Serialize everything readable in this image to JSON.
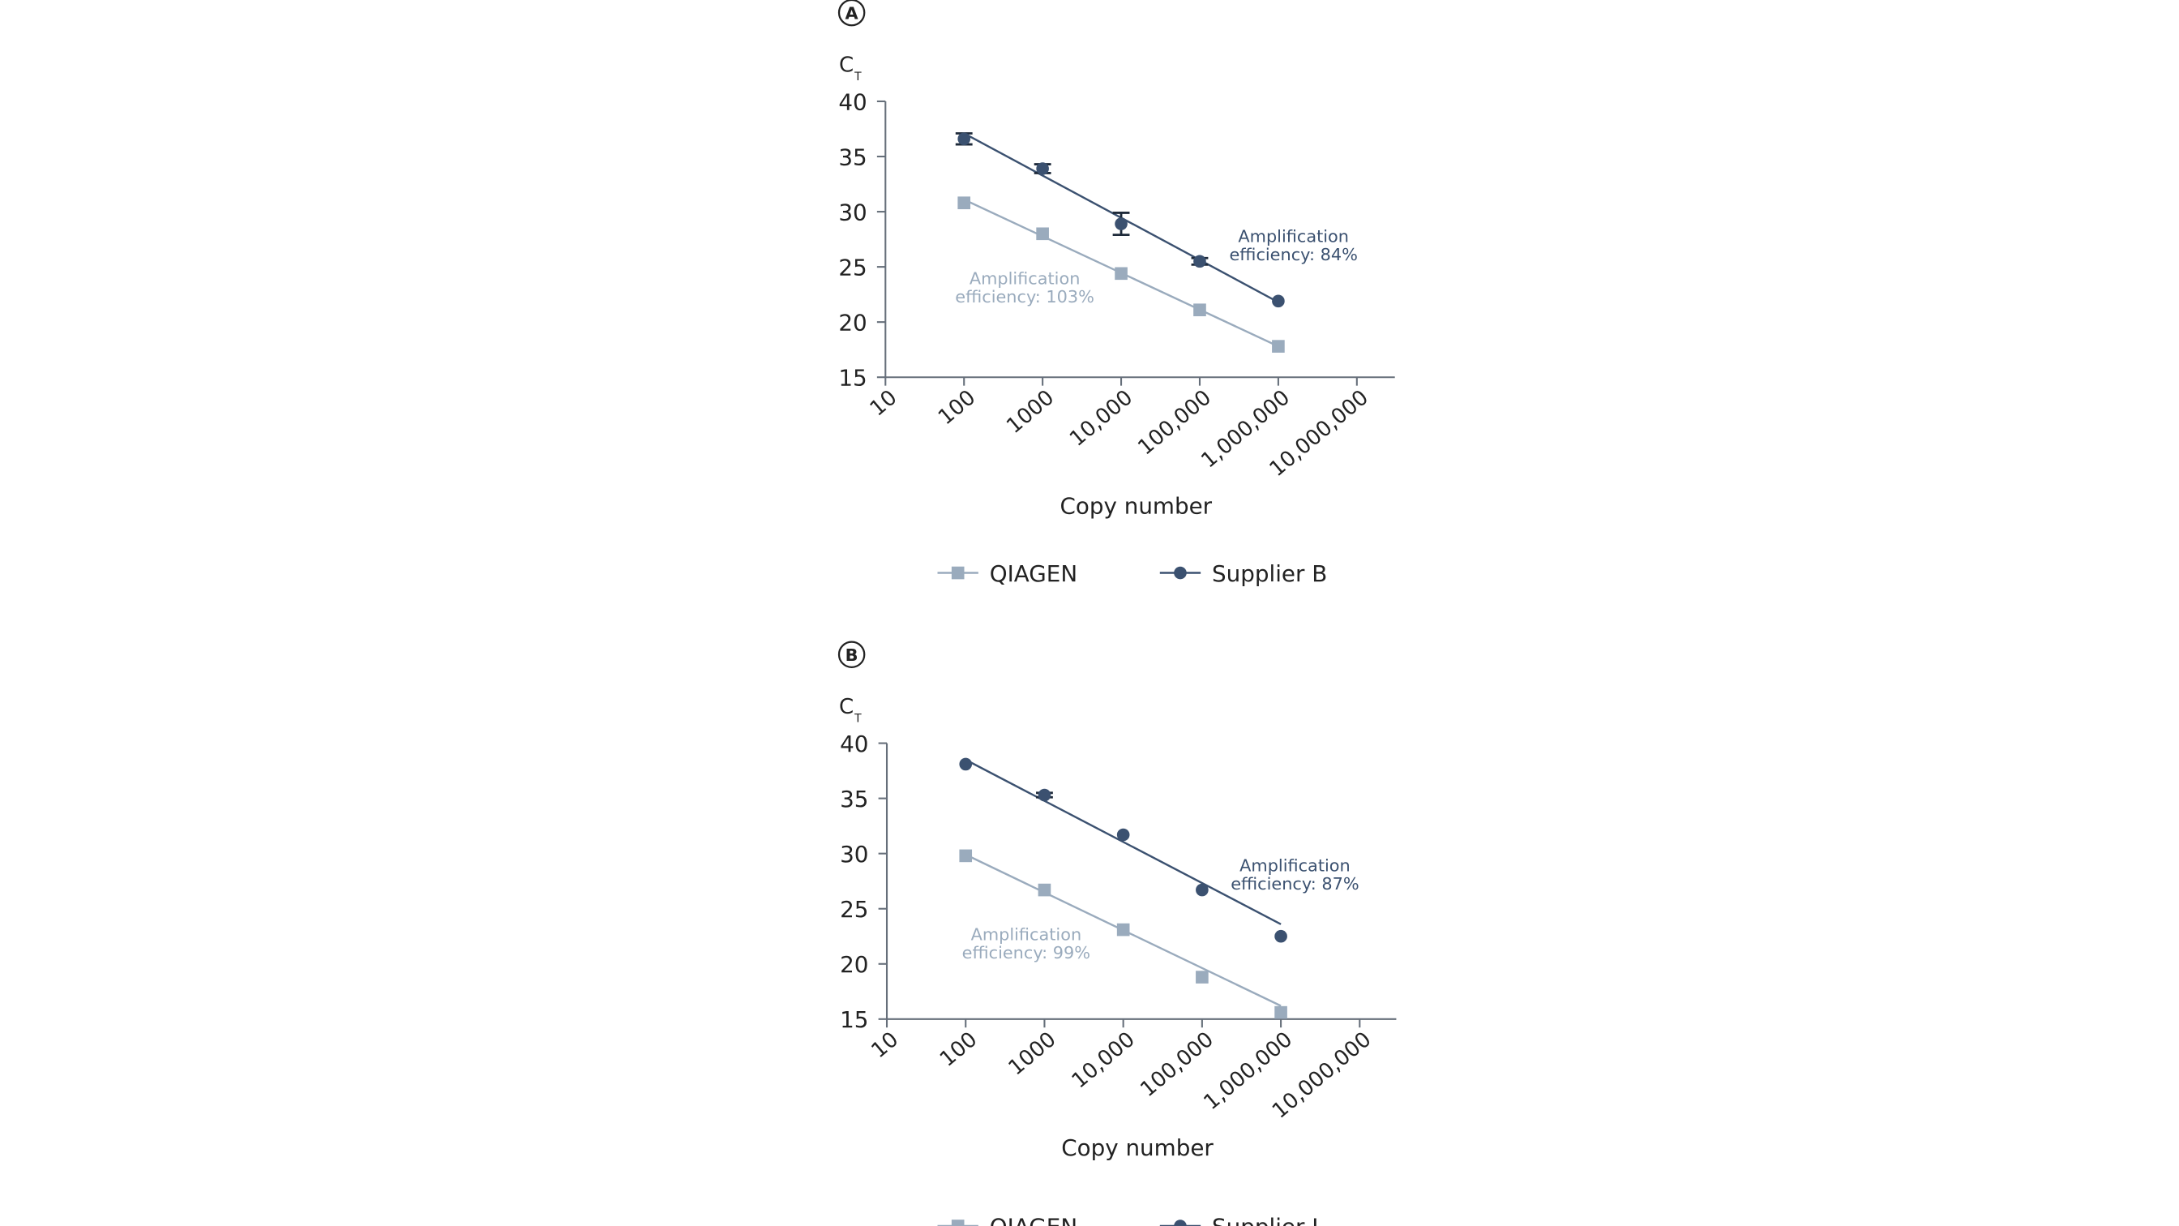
{
  "chart_data": [
    {
      "panel_label": "A",
      "type": "scatter",
      "ylabel": "C",
      "ylabel_sub": "T",
      "xlabel": "Copy number",
      "x_scale": "log10",
      "xlim": [
        10,
        10000000
      ],
      "ylim": [
        15,
        40
      ],
      "y_ticks": [
        40,
        35,
        30,
        25,
        20,
        15
      ],
      "x_ticks": [
        10,
        100,
        1000,
        10000,
        100000,
        1000000,
        10000000
      ],
      "x_tick_labels": [
        "10",
        "100",
        "1000",
        "10,000",
        "100,000",
        "1,000,000",
        "10,000,000"
      ],
      "series": [
        {
          "name": "QIAGEN",
          "marker": "square",
          "color": "#9aabbd",
          "x": [
            100,
            1000,
            10000,
            100000,
            1000000
          ],
          "y": [
            30.8,
            28.0,
            24.4,
            21.1,
            17.8
          ],
          "fit": [
            31.1,
            17.8
          ],
          "annotation": [
            "Amplification",
            "efficiency: 103%"
          ]
        },
        {
          "name": "Supplier B",
          "marker": "circle",
          "color": "#3b5170",
          "x": [
            100,
            1000,
            10000,
            100000,
            1000000
          ],
          "y": [
            36.6,
            33.9,
            28.9,
            25.5,
            21.9
          ],
          "err": [
            0.5,
            0.4,
            1.0,
            0.3,
            0
          ],
          "fit": [
            37.1,
            21.8
          ],
          "annotation": [
            "Amplification",
            "efficiency: 84%"
          ]
        }
      ]
    },
    {
      "panel_label": "B",
      "type": "scatter",
      "ylabel": "C",
      "ylabel_sub": "T",
      "xlabel": "Copy number",
      "x_scale": "log10",
      "xlim": [
        10,
        10000000
      ],
      "ylim": [
        15,
        40
      ],
      "y_ticks": [
        40,
        35,
        30,
        25,
        20,
        15
      ],
      "x_ticks": [
        10,
        100,
        1000,
        10000,
        100000,
        1000000,
        10000000
      ],
      "x_tick_labels": [
        "10",
        "100",
        "1000",
        "10,000",
        "100,000",
        "1,000,000",
        "10,000,000"
      ],
      "series": [
        {
          "name": "QIAGEN",
          "marker": "square",
          "color": "#9aabbd",
          "x": [
            100,
            1000,
            10000,
            100000,
            1000000
          ],
          "y": [
            29.8,
            26.7,
            23.1,
            18.8,
            15.6
          ],
          "fit": [
            29.9,
            16.2
          ],
          "annotation": [
            "Amplification",
            "efficiency: 99%"
          ]
        },
        {
          "name": "Supplier L",
          "marker": "circle",
          "color": "#3b5170",
          "x": [
            100,
            1000,
            10000,
            100000,
            1000000
          ],
          "y": [
            38.1,
            35.3,
            31.7,
            26.7,
            22.5
          ],
          "err": [
            0,
            0.2,
            0,
            0,
            0
          ],
          "fit": [
            38.5,
            23.6
          ],
          "annotation": [
            "Amplification",
            "efficiency: 87%"
          ]
        }
      ]
    }
  ]
}
